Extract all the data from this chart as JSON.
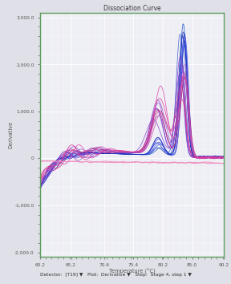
{
  "title": "Dissociation Curve",
  "xlabel": "Temperature (°C)",
  "ylabel": "Derivative",
  "xmin": 60.2,
  "xmax": 90.2,
  "ymin": -2000,
  "ymax": 3000,
  "ytick_vals": [
    -2000,
    -1000,
    0,
    1000,
    2000,
    3000
  ],
  "ytick_labels": [
    "-2,000.0",
    "-1,000.0",
    "0",
    "1,000.0",
    "2,000.0",
    "3,000.0"
  ],
  "xtick_vals": [
    60.2,
    65.2,
    70.6,
    75.4,
    80.2,
    85.0,
    90.2
  ],
  "xtick_labels": [
    "60.2",
    "65.2",
    "70.6",
    "75.4",
    "80.2",
    "85.0",
    "90.2"
  ],
  "bg_color": "#e0e0e8",
  "plot_bg": "#eeeef5",
  "grid_color": "#ffffff",
  "border_color": "#5a9e5a",
  "footer_bg": "#c0c0b0",
  "footer_text": "Detector:  [T19] ▼   Plot:  Derivative ▼   Step:  Stage 4, step 1 ▼",
  "main_peak_temp": 83.5,
  "secondary_peak_temp": 79.5,
  "n_blue": 8,
  "n_purple": 6,
  "n_pink": 5,
  "n_flat": 2
}
